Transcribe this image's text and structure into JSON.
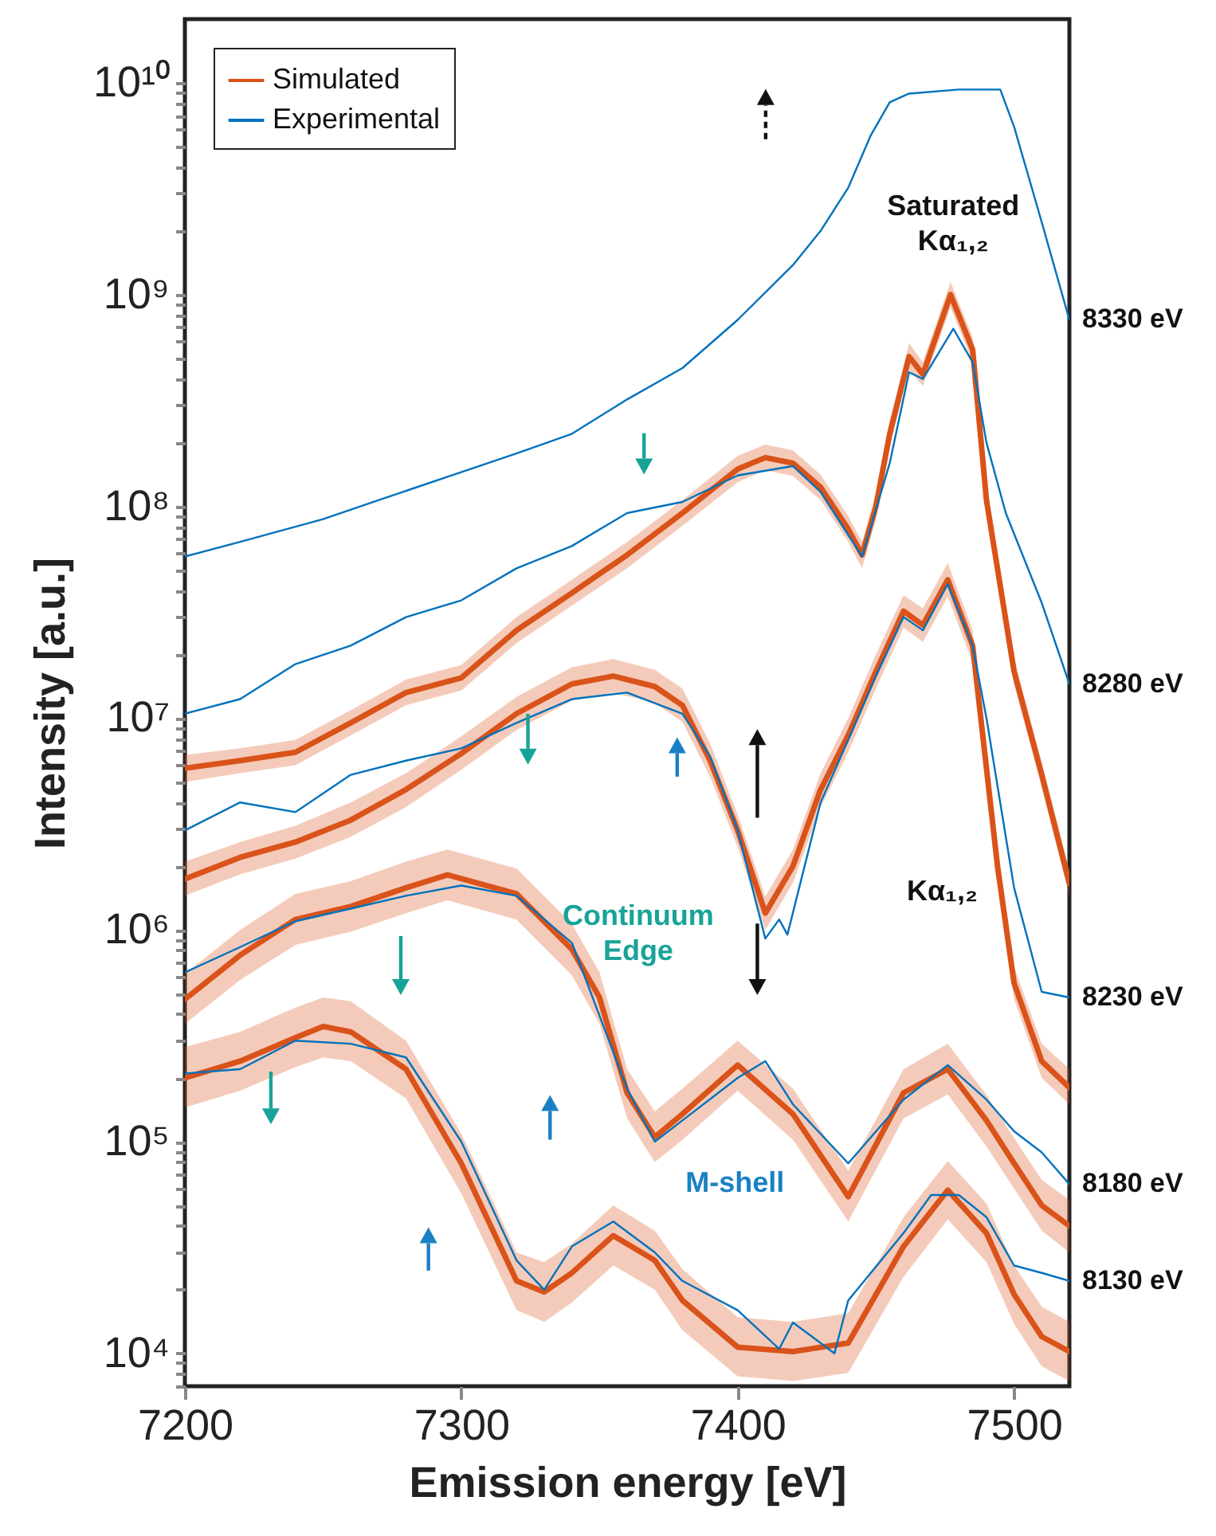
{
  "chart_data": {
    "type": "line",
    "xlabel": "Emission energy [eV]",
    "ylabel": "Intensity [a.u.]",
    "log": true,
    "legend": "top left",
    "xlim": [
      7200,
      7520
    ],
    "xticks": [
      7200,
      7300,
      7400,
      7500
    ],
    "ylim": [
      7000,
      20000000000.0
    ],
    "yticks": [
      {
        "value": 7000,
        "label": null
      },
      {
        "value": 8000,
        "label": null
      },
      {
        "value": 9000,
        "label": null
      },
      {
        "value": 10000,
        "label": "10⁴"
      },
      {
        "value": 20000,
        "label": null
      },
      {
        "value": 30000,
        "label": null
      },
      {
        "value": 40000,
        "label": null
      },
      {
        "value": 50000,
        "label": null
      },
      {
        "value": 60000,
        "label": null
      },
      {
        "value": 70000,
        "label": null
      },
      {
        "value": 80000,
        "label": null
      },
      {
        "value": 90000,
        "label": null
      },
      {
        "value": 100000,
        "label": "10⁵"
      },
      {
        "value": 200000,
        "label": null
      },
      {
        "value": 300000,
        "label": null
      },
      {
        "value": 400000,
        "label": null
      },
      {
        "value": 500000,
        "label": null
      },
      {
        "value": 600000,
        "label": null
      },
      {
        "value": 700000,
        "label": null
      },
      {
        "value": 800000,
        "label": null
      },
      {
        "value": 900000,
        "label": null
      },
      {
        "value": 1000000,
        "label": "10⁶"
      },
      {
        "value": 2000000,
        "label": null
      },
      {
        "value": 3000000,
        "label": null
      },
      {
        "value": 4000000,
        "label": null
      },
      {
        "value": 5000000,
        "label": null
      },
      {
        "value": 6000000,
        "label": null
      },
      {
        "value": 7000000,
        "label": null
      },
      {
        "value": 8000000,
        "label": null
      },
      {
        "value": 9000000,
        "label": null
      },
      {
        "value": 10000000,
        "label": "10⁷"
      },
      {
        "value": 20000000,
        "label": null
      },
      {
        "value": 30000000,
        "label": null
      },
      {
        "value": 40000000,
        "label": null
      },
      {
        "value": 50000000,
        "label": null
      },
      {
        "value": 60000000,
        "label": null
      },
      {
        "value": 70000000,
        "label": null
      },
      {
        "value": 80000000,
        "label": null
      },
      {
        "value": 90000000,
        "label": null
      },
      {
        "value": 100000000,
        "label": "10⁸"
      },
      {
        "value": 200000000,
        "label": null
      },
      {
        "value": 300000000,
        "label": null
      },
      {
        "value": 400000000,
        "label": null
      },
      {
        "value": 500000000,
        "label": null
      },
      {
        "value": 600000000,
        "label": null
      },
      {
        "value": 700000000,
        "label": null
      },
      {
        "value": 800000000,
        "label": null
      },
      {
        "value": 900000000,
        "label": null
      },
      {
        "value": 1000000000,
        "label": "10⁹"
      },
      {
        "value": 2000000000,
        "label": null
      },
      {
        "value": 3000000000,
        "label": null
      },
      {
        "value": 4000000000,
        "label": null
      },
      {
        "value": 5000000000,
        "label": null
      },
      {
        "value": 6000000000,
        "label": null
      },
      {
        "value": 7000000000,
        "label": null
      },
      {
        "value": 8000000000,
        "label": null
      },
      {
        "value": 9000000000,
        "label": null
      },
      {
        "value": 10000000000,
        "label": "10¹⁰"
      }
    ],
    "series": [
      {
        "name": "Simulated",
        "color": "#d95319",
        "x": [
          7200,
          7220,
          7240,
          7260,
          7280,
          7300,
          7320,
          7340,
          7360,
          7380,
          7400,
          7410,
          7420,
          7430,
          7440,
          7445,
          7450,
          7455,
          7462,
          7467,
          7477,
          7485,
          7490,
          7500,
          7510,
          7520
        ],
        "values": [
          5800000.0,
          6300000.0,
          6900000.0,
          9500000.0,
          13200000.0,
          15500000.0,
          26000000.0,
          39000000.0,
          59000000.0,
          93000000.0,
          150000000.0,
          170000000.0,
          160000000.0,
          123000000.0,
          78000000.0,
          59000000.0,
          100000000.0,
          220000000.0,
          510000000.0,
          420000000.0,
          1000000000.0,
          550000000.0,
          107000000.0,
          16600000.0,
          5400000.0,
          1660000.0
        ],
        "lower": [
          5000000.0,
          5500000.0,
          6000000.0,
          8300000.0,
          11500000.0,
          13500000.0,
          22600000.0,
          34000000.0,
          51000000.0,
          81000000.0,
          130000000.0,
          148000000.0,
          139000000.0,
          107000000.0,
          68000000.0,
          51000000.0,
          87000000.0,
          191000000.0,
          440000000.0,
          370000000.0,
          870000000.0,
          480000000.0,
          93000000.0,
          14400000.0,
          4700000.0,
          1440000.0
        ],
        "upper": [
          6700000.0,
          7200000.0,
          7900000.0,
          10900000.0,
          15200000.0,
          17800000.0,
          30000000.0,
          45000000.0,
          68000000.0,
          107000000.0,
          173000000.0,
          196000000.0,
          184000000.0,
          141000000.0,
          90000000.0,
          68000000.0,
          115000000.0,
          250000000.0,
          590000000.0,
          480000000.0,
          1150000000.0,
          630000000.0,
          123000000.0,
          19100000.0,
          6200000.0,
          1910000.0
        ]
      },
      {
        "color": "#d9531a",
        "x": [
          7200,
          7220,
          7240,
          7260,
          7280,
          7300,
          7320,
          7340,
          7355,
          7370,
          7380,
          7390,
          7400,
          7410,
          7420,
          7430,
          7440,
          7450,
          7460,
          7467,
          7476,
          7485,
          7494,
          7500,
          7510,
          7520
        ],
        "values": [
          1740000.0,
          2200000.0,
          2600000.0,
          3300000.0,
          4600000.0,
          6800000.0,
          10500000.0,
          14500000.0,
          15800000.0,
          14100000.0,
          11500000.0,
          6300000.0,
          2950000.0,
          1200000.0,
          2000000.0,
          4600000.0,
          8300000.0,
          16600000.0,
          32000000.0,
          27500000.0,
          45000000.0,
          22000000.0,
          2000000.0,
          560000.0,
          240000.0,
          180000.0
        ],
        "lower": [
          1450000.0,
          1830000.0,
          2170000.0,
          2750000.0,
          3800000.0,
          5700000.0,
          8800000.0,
          12100000.0,
          13200000.0,
          11800000.0,
          9600000.0,
          5300000.0,
          2460000.0,
          1000000.0,
          1670000.0,
          3800000.0,
          6900000.0,
          13800000.0,
          26700000.0,
          22900000.0,
          37500000.0,
          18300000.0,
          1670000.0,
          470000.0,
          200000.0,
          150000.0
        ],
        "upper": [
          2100000.0,
          2600000.0,
          3100000.0,
          4000000.0,
          5500000.0,
          8200000.0,
          12600000.0,
          17400000.0,
          19000000.0,
          16900000.0,
          13800000.0,
          7600000.0,
          3500000.0,
          1440000.0,
          2400000.0,
          5500000.0,
          10000000.0,
          20000000.0,
          38000000.0,
          33000000.0,
          54000000.0,
          26000000.0,
          2400000.0,
          670000.0,
          290000.0,
          220000.0
        ]
      },
      {
        "color": "#d9531b",
        "x": [
          7200,
          7220,
          7240,
          7260,
          7280,
          7295,
          7320,
          7340,
          7350,
          7360,
          7370,
          7380,
          7400,
          7420,
          7440,
          7460,
          7476,
          7490,
          7500,
          7510,
          7520
        ],
        "values": [
          470000.0,
          760000.0,
          1120000.0,
          1290000.0,
          1580000.0,
          1820000.0,
          1480000.0,
          810000.0,
          480000.0,
          170000.0,
          105000.0,
          135000.0,
          230000.0,
          135000.0,
          55000.0,
          170000.0,
          220000.0,
          126000.0,
          79000.0,
          50000.0,
          40000.0
        ],
        "lower": [
          360000.0,
          580000.0,
          850000.0,
          980000.0,
          1200000.0,
          1380000.0,
          1120000.0,
          610000.0,
          360000.0,
          129000.0,
          80000.0,
          102000.0,
          174000.0,
          102000.0,
          42000.0,
          129000.0,
          167000.0,
          95000.0,
          60000.0,
          38000.0,
          30000.0
        ],
        "upper": [
          620000.0,
          1000000.0,
          1480000.0,
          1700000.0,
          2100000.0,
          2400000.0,
          1950000.0,
          1070000.0,
          630000.0,
          220000.0,
          139000.0,
          178000.0,
          300000.0,
          178000.0,
          73000.0,
          220000.0,
          290000.0,
          166000.0,
          104000.0,
          66000.0,
          53000.0
        ]
      },
      {
        "color": "#d9531c",
        "x": [
          7200,
          7220,
          7240,
          7250,
          7260,
          7280,
          7300,
          7320,
          7330,
          7340,
          7355,
          7370,
          7380,
          7400,
          7420,
          7440,
          7460,
          7476,
          7490,
          7500,
          7510,
          7520
        ],
        "values": [
          200000.0,
          240000.0,
          310000.0,
          350000.0,
          330000.0,
          220000.0,
          79000.0,
          22000.0,
          19500.0,
          24000.0,
          36000.0,
          27500.0,
          17800.0,
          10700.0,
          10200.0,
          11200.0,
          32000.0,
          59000.0,
          37000.0,
          19000.0,
          12000.0,
          10200.0
        ],
        "lower": [
          145000.0,
          174000.0,
          225000.0,
          250000.0,
          240000.0,
          160000.0,
          57000.0,
          16000.0,
          14100.0,
          17400.0,
          26000.0,
          20000.0,
          12900.0,
          7800.0,
          7400.0,
          8100.0,
          23000.0,
          43000.0,
          27000.0,
          13800.0,
          8700.0,
          7400.0
        ],
        "upper": [
          280000.0,
          330000.0,
          430000.0,
          480000.0,
          460000.0,
          300000.0,
          109000.0,
          30000.0,
          27000.0,
          33000.0,
          50000.0,
          38000.0,
          25000.0,
          14800.0,
          14100.0,
          15500.0,
          44000.0,
          81000.0,
          51000.0,
          26000.0,
          16600.0,
          14100.0
        ]
      },
      {
        "name": "Experimental",
        "color": "#0072bd",
        "x": [
          7200,
          7220,
          7250,
          7270,
          7300,
          7320,
          7340,
          7360,
          7380,
          7400,
          7420,
          7430,
          7440,
          7448,
          7455,
          7462,
          7480,
          7495,
          7500,
          7510,
          7520
        ],
        "values": [
          58000000.0,
          68000000.0,
          87000000.0,
          107000000.0,
          145000000.0,
          178000000.0,
          220000000.0,
          320000000.0,
          450000000.0,
          760000000.0,
          1380000000.0,
          2000000000.0,
          3200000000.0,
          5600000000.0,
          8100000000.0,
          8900000000.0,
          9300000000.0,
          9300000000.0,
          6200000000.0,
          2200000000.0,
          760000000.0
        ]
      },
      {
        "color": "#0072bd",
        "x": [
          7200,
          7220,
          7240,
          7260,
          7280,
          7300,
          7320,
          7340,
          7360,
          7380,
          7400,
          7420,
          7430,
          7445,
          7455,
          7462,
          7467,
          7478,
          7485,
          7490,
          7497,
          7510,
          7520
        ],
        "values": [
          10500000.0,
          12300000.0,
          18000000.0,
          22000000.0,
          30000000.0,
          36000000.0,
          51000000.0,
          65000000.0,
          93000000.0,
          105000000.0,
          140000000.0,
          155000000.0,
          117000000.0,
          58000000.0,
          160000000.0,
          430000000.0,
          400000000.0,
          690000000.0,
          480000000.0,
          200000000.0,
          93000000.0,
          35000000.0,
          14500000.0
        ]
      },
      {
        "color": "#0072bd",
        "x": [
          7200,
          7220,
          7240,
          7260,
          7280,
          7300,
          7320,
          7340,
          7360,
          7380,
          7390,
          7400,
          7410,
          7415,
          7418,
          7430,
          7440,
          7450,
          7460,
          7467,
          7476,
          7485,
          7490,
          7500,
          7510,
          7520
        ],
        "values": [
          2950000.0,
          4000000.0,
          3600000.0,
          5400000.0,
          6300000.0,
          7200000.0,
          9500000.0,
          12300000.0,
          13200000.0,
          10500000.0,
          6600000.0,
          2950000.0,
          910000.0,
          1120000.0,
          950000.0,
          4000000.0,
          7900000.0,
          15800000.0,
          30000000.0,
          26000000.0,
          43000000.0,
          22000000.0,
          10000000.0,
          1580000.0,
          510000.0,
          480000.0
        ]
      },
      {
        "color": "#0072bd",
        "x": [
          7200,
          7220,
          7240,
          7260,
          7280,
          7300,
          7320,
          7340,
          7360,
          7370,
          7380,
          7400,
          7410,
          7420,
          7440,
          7460,
          7476,
          7490,
          7500,
          7510,
          7520
        ],
        "values": [
          630000.0,
          830000.0,
          1100000.0,
          1260000.0,
          1450000.0,
          1620000.0,
          1450000.0,
          870000.0,
          178000.0,
          100000.0,
          126000.0,
          200000.0,
          240000.0,
          150000.0,
          79000.0,
          158000.0,
          230000.0,
          158000.0,
          112000.0,
          89000.0,
          63000.0
        ]
      },
      {
        "color": "#0072bd",
        "x": [
          7200,
          7220,
          7240,
          7260,
          7280,
          7300,
          7320,
          7330,
          7340,
          7355,
          7370,
          7380,
          7400,
          7415,
          7420,
          7435,
          7440,
          7460,
          7470,
          7480,
          7490,
          7500,
          7510,
          7520
        ],
        "values": [
          210000.0,
          220000.0,
          300000.0,
          290000.0,
          250000.0,
          100000.0,
          27500.0,
          20000.0,
          32000.0,
          42000.0,
          30000.0,
          22000.0,
          16000.0,
          10500.0,
          14000.0,
          10000.0,
          17800.0,
          37000.0,
          56000.0,
          56000.0,
          44000.0,
          26000.0,
          24000.0,
          22000.0
        ]
      }
    ],
    "annotations": [
      "Saturated\nKα₁,₂",
      "Continuum\nEdge",
      "M-shell",
      "Kα₁,₂",
      "8330 eV",
      "8280 eV",
      "8230 eV",
      "8180 eV",
      "8130 eV"
    ]
  }
}
